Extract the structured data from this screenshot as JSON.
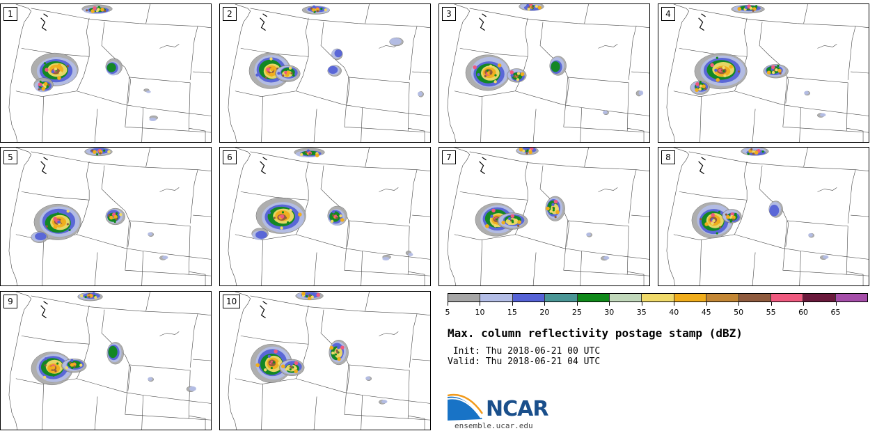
{
  "stamps": [
    {
      "label": "1"
    },
    {
      "label": "2"
    },
    {
      "label": "3"
    },
    {
      "label": "4"
    },
    {
      "label": "5"
    },
    {
      "label": "6"
    },
    {
      "label": "7"
    },
    {
      "label": "8"
    },
    {
      "label": "9"
    },
    {
      "label": "10"
    }
  ],
  "colorbar": {
    "ticks": [
      "5",
      "10",
      "15",
      "20",
      "25",
      "30",
      "35",
      "40",
      "45",
      "50",
      "55",
      "60",
      "65"
    ],
    "colors": [
      "#a6a6a6",
      "#b3bde6",
      "#5562d6",
      "#4a9696",
      "#10891a",
      "#c1d8bb",
      "#f0da6a",
      "#f0ad1c",
      "#c38735",
      "#8f5b3e",
      "#ef5a7f",
      "#6a1a3c",
      "#a54ea9"
    ]
  },
  "title": "Max. column reflectivity postage stamp (dBZ)",
  "init": " Init: Thu 2018-06-21 00 UTC",
  "valid": "Valid: Thu 2018-06-21 04 UTC",
  "logo": {
    "text": "NCAR",
    "url": "ensemble.ucar.edu"
  }
}
